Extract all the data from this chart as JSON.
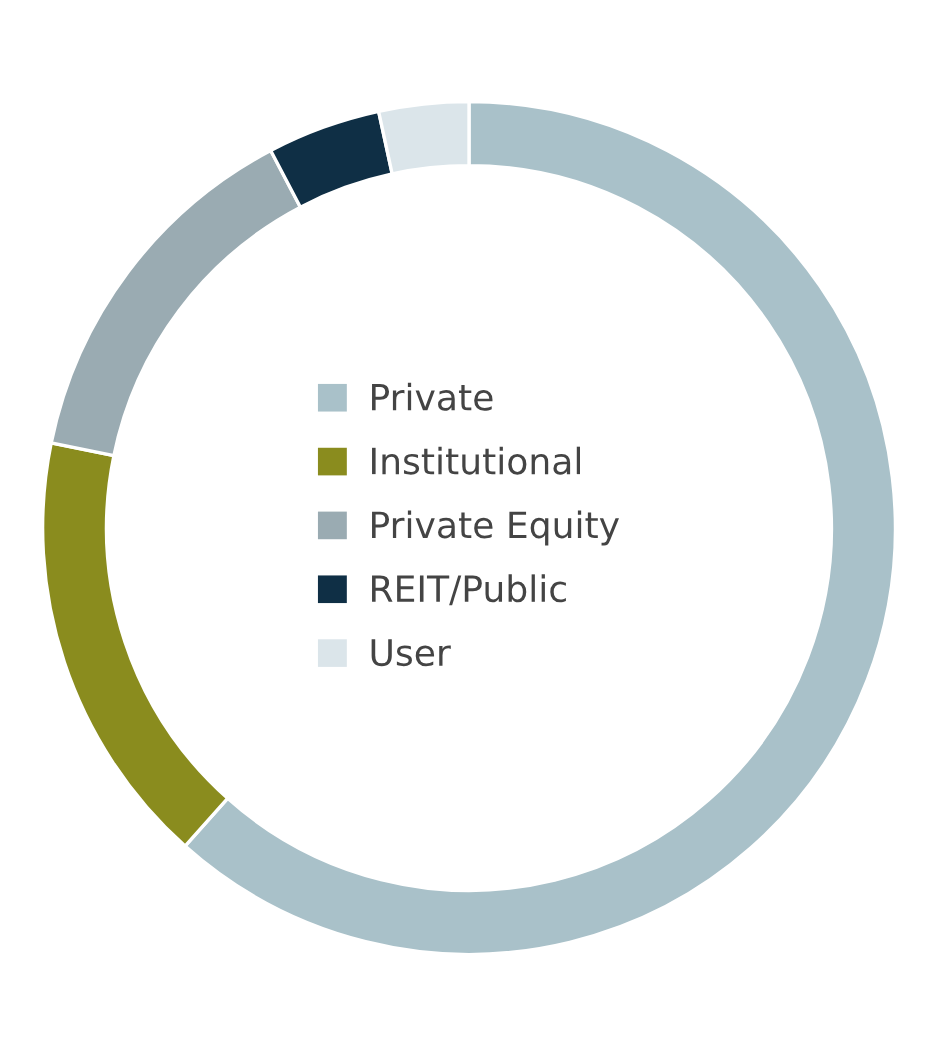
{
  "chart_data": {
    "type": "donut",
    "categories": [
      "Private",
      "Institutional",
      "Private Equity",
      "REIT/Public",
      "User"
    ],
    "values": [
      61.6,
      16.6,
      14.1,
      4.3,
      3.4
    ],
    "colors": [
      "#a9c1c9",
      "#8a8c1e",
      "#9aabb2",
      "#0f2f45",
      "#dbe5ea"
    ],
    "legend": "center"
  }
}
